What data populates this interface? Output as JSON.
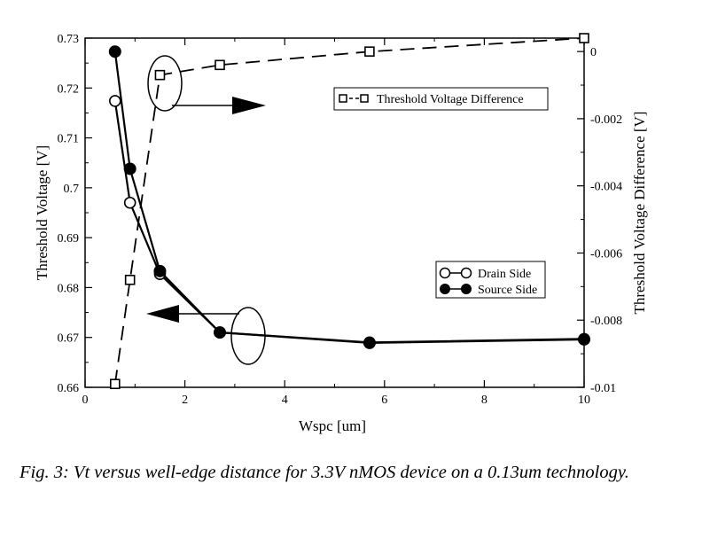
{
  "chart_data": {
    "type": "line",
    "xlabel": "Wspc [um]",
    "ylabel": "Threshold Voltage [V]",
    "y2label": "Threshold Voltage Difference [V]",
    "xlim": [
      0,
      10
    ],
    "ylim": [
      0.66,
      0.73
    ],
    "y2lim": [
      -0.01,
      0.0004
    ],
    "grid": false,
    "x_ticks": [
      "0",
      "2",
      "4",
      "6",
      "8",
      "10"
    ],
    "y_ticks": [
      "0.66",
      "0.67",
      "0.68",
      "0.69",
      "0.7",
      "0.71",
      "0.72",
      "0.73"
    ],
    "y2_ticks": [
      "-0.01",
      "-0.008",
      "-0.006",
      "-0.004",
      "-0.002",
      "0"
    ],
    "series": [
      {
        "name": "Drain Side",
        "axis": "left",
        "marker": "open-circle",
        "x": [
          0.6,
          0.9,
          1.5,
          2.7,
          5.7,
          10
        ],
        "values": [
          0.7174,
          0.697,
          0.6827,
          0.671,
          0.669,
          0.6697
        ]
      },
      {
        "name": "Source Side",
        "axis": "left",
        "marker": "filled-circle",
        "x": [
          0.6,
          0.9,
          1.5,
          2.7,
          5.7,
          10
        ],
        "values": [
          0.7273,
          0.7038,
          0.6833,
          0.671,
          0.6689,
          0.6696
        ]
      },
      {
        "name": "Threshold Voltage Difference",
        "axis": "right",
        "marker": "open-square",
        "line": "dashed",
        "x": [
          0.6,
          0.9,
          1.5,
          2.7,
          5.7,
          10
        ],
        "values": [
          -0.0099,
          -0.0068,
          -0.0007,
          -0.0004,
          0.0,
          0.0004
        ]
      }
    ],
    "legend_placement": [
      "top-right",
      "center-right"
    ]
  },
  "caption": "Fig. 3: Vt versus well-edge distance for 3.3V nMOS device on a 0.13um technology."
}
